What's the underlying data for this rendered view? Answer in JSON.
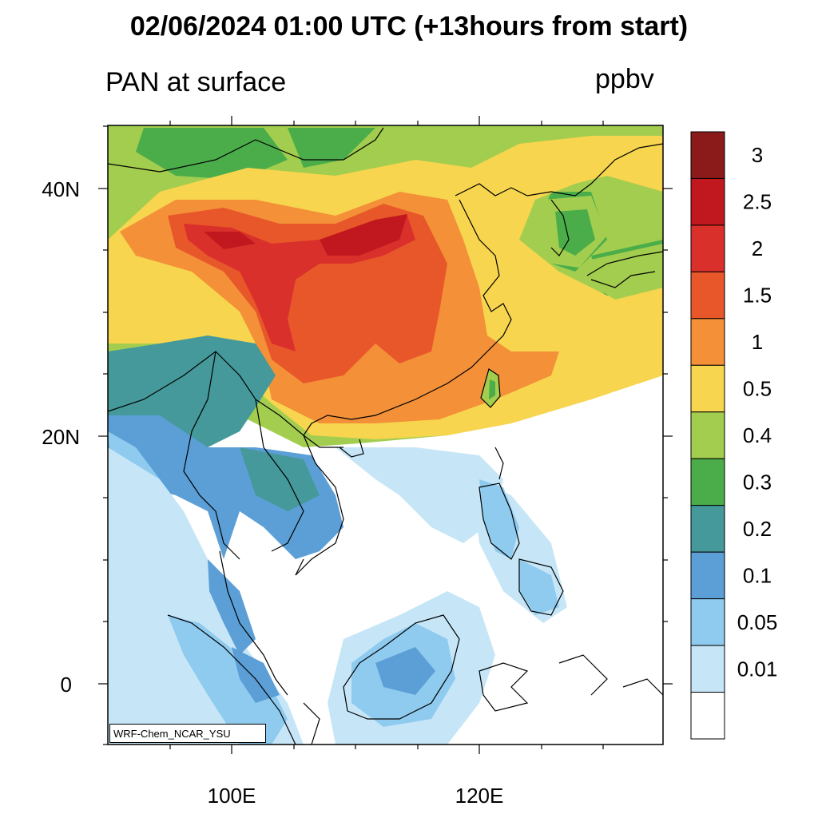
{
  "header": {
    "title": "02/06/2024 01:00 UTC (+13hours from start)",
    "variable": "PAN at surface",
    "units": "ppbv"
  },
  "map": {
    "x_ticks": [
      "100E",
      "120E"
    ],
    "y_ticks": [
      "40N",
      "20N",
      "0"
    ],
    "credit": "WRF-Chem_NCAR_YSU",
    "land_colors": {
      "background_ocean": "#ffffff",
      "coastline": "#000000"
    }
  },
  "colorbar": {
    "labels": [
      "3",
      "2.5",
      "2",
      "1.5",
      "1",
      "0.5",
      "0.4",
      "0.3",
      "0.2",
      "0.1",
      "0.05",
      "0.01"
    ],
    "colors_top_to_bottom": [
      "#8b1a1a",
      "#c0181e",
      "#d9302b",
      "#e8572a",
      "#f39038",
      "#f7d54e",
      "#a3cd4e",
      "#4aad4a",
      "#45999a",
      "#5b9fd6",
      "#8fcbef",
      "#c6e6f7",
      "#ffffff"
    ]
  }
}
